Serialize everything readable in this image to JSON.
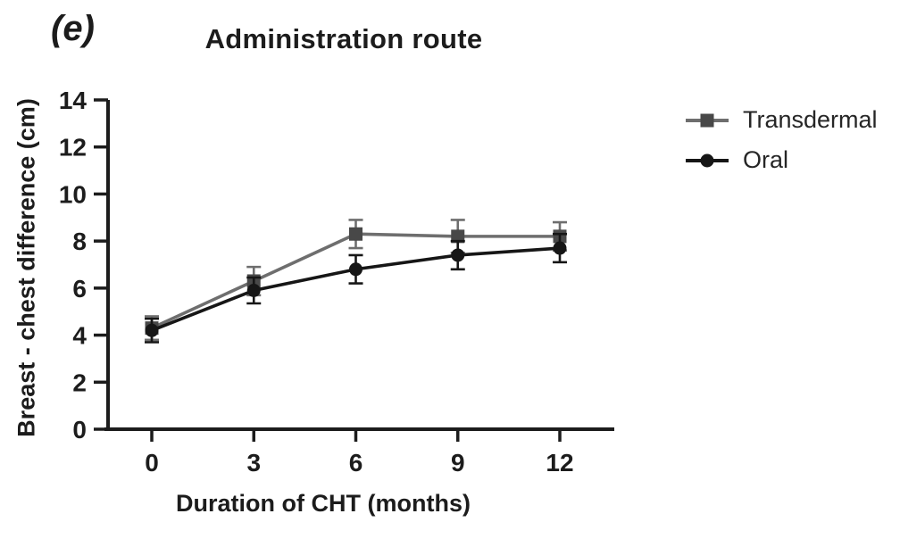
{
  "figure": {
    "panel_label": "(e)",
    "background": "#ffffff",
    "ink_color": "#1c1c1c"
  },
  "chart_data": {
    "type": "line",
    "title": "Administration route",
    "xlabel": "Duration of CHT (months)",
    "ylabel": "Breast - chest difference (cm)",
    "x": [
      0,
      3,
      6,
      9,
      12
    ],
    "xticks": [
      0,
      3,
      6,
      9,
      12
    ],
    "yticks": [
      0,
      2,
      4,
      6,
      8,
      10,
      12,
      14
    ],
    "xlim": [
      0,
      12
    ],
    "ylim": [
      0,
      14
    ],
    "grid": false,
    "error_bars": true,
    "legend_position": "right",
    "series": [
      {
        "name": "Transdermal",
        "marker": "square",
        "color": "#6e6e6e",
        "marker_color": "#484848",
        "values": [
          4.3,
          6.3,
          8.3,
          8.2,
          8.2
        ],
        "errors": [
          0.5,
          0.6,
          0.6,
          0.7,
          0.6
        ]
      },
      {
        "name": "Oral",
        "marker": "circle",
        "color": "#161616",
        "marker_color": "#161616",
        "values": [
          4.2,
          5.9,
          6.8,
          7.4,
          7.7
        ],
        "errors": [
          0.5,
          0.55,
          0.6,
          0.6,
          0.6
        ]
      }
    ]
  }
}
